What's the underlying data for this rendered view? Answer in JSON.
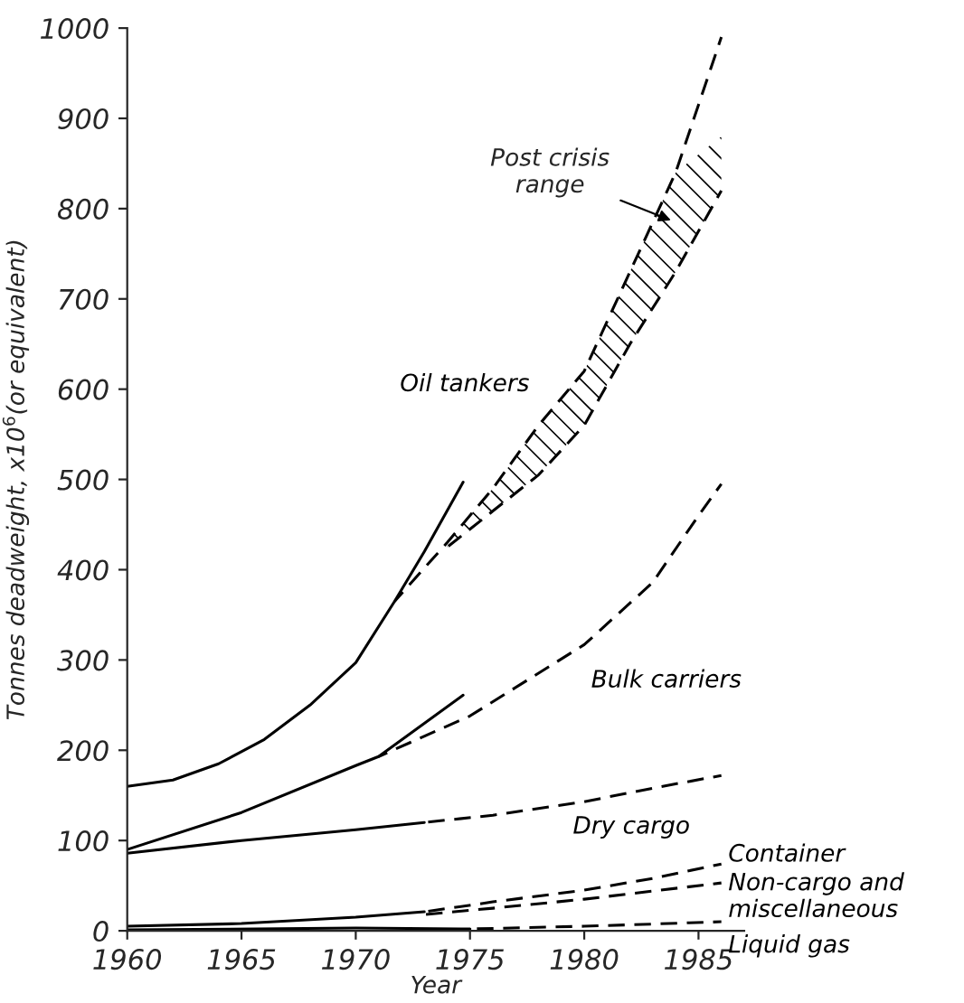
{
  "chart_data": {
    "type": "line",
    "xlabel": "Year",
    "ylabel": "Tonnes deadweight, x10$^{6}$(or equivalent)",
    "xlim": [
      1960,
      1987
    ],
    "xticks": [
      1960,
      1965,
      1970,
      1975,
      1980,
      1985
    ],
    "ylim": [
      0,
      1000
    ],
    "yticks": [
      0,
      100,
      200,
      300,
      400,
      500,
      600,
      700,
      800,
      900,
      1000
    ],
    "grid": false,
    "legend": false,
    "marker": "none",
    "series": [
      {
        "color": "#000000",
        "line_style": "solid",
        "x": [
          1960,
          1962,
          1964,
          1966,
          1968,
          1970,
          1971.7,
          1973,
          1974.7
        ],
        "values": [
          160,
          167,
          185,
          212,
          250,
          297,
          365,
          420,
          497
        ]
      },
      {
        "name": "Oil tankers",
        "color": "#000000",
        "line_style": "dashed",
        "x": [
          1971.7,
          1974,
          1976,
          1978,
          1980,
          1982,
          1984,
          1986
        ],
        "values": [
          365,
          430,
          490,
          560,
          620,
          730,
          840,
          990
        ],
        "lower": [
          null,
          425,
          465,
          505,
          560,
          650,
          730,
          820
        ],
        "upper": [
          null,
          430,
          490,
          560,
          620,
          730,
          840,
          880
        ]
      },
      {
        "color": "#000000",
        "line_style": "dashed",
        "x": [
          1974,
          1976,
          1978,
          1980,
          1982,
          1984,
          1986
        ],
        "values": [
          425,
          465,
          505,
          560,
          650,
          730,
          820
        ]
      },
      {
        "color": "#000000",
        "line_style": "solid",
        "x": [
          1960,
          1965,
          1970,
          1971,
          1974.7
        ],
        "values": [
          90,
          131,
          183,
          193,
          261
        ]
      },
      {
        "name": "Bulk carriers",
        "color": "#000000",
        "line_style": "dashed",
        "x": [
          1971,
          1975,
          1980,
          1983,
          1985,
          1986
        ],
        "values": [
          193,
          238,
          317,
          386,
          460,
          495
        ]
      },
      {
        "color": "#000000",
        "line_style": "solid",
        "x": [
          1960,
          1965,
          1970,
          1973
        ],
        "values": [
          86,
          100,
          112,
          120
        ]
      },
      {
        "name": "Dry cargo",
        "color": "#000000",
        "line_style": "dashed",
        "x": [
          1973,
          1976,
          1980,
          1983,
          1986
        ],
        "values": [
          120,
          128,
          143,
          158,
          172
        ]
      },
      {
        "color": "#000000",
        "line_style": "solid",
        "x": [
          1960,
          1965,
          1970,
          1973
        ],
        "values": [
          5,
          8,
          15,
          21
        ]
      },
      {
        "name": "Container",
        "color": "#000000",
        "line_style": "dashed",
        "x": [
          1973,
          1976,
          1980,
          1983,
          1986
        ],
        "values": [
          21,
          32,
          45,
          58,
          74
        ]
      },
      {
        "name": "Non-cargo and miscellaneous",
        "color": "#000000",
        "line_style": "dashed",
        "x": [
          1973,
          1976,
          1980,
          1983,
          1986
        ],
        "values": [
          18,
          25,
          35,
          44,
          53
        ]
      },
      {
        "color": "#000000",
        "line_style": "solid",
        "x": [
          1960,
          1970,
          1975
        ],
        "values": [
          1,
          3,
          2
        ]
      },
      {
        "name": "Liquid gas",
        "color": "#000000",
        "line_style": "dashed",
        "x": [
          1975,
          1980,
          1986
        ],
        "values": [
          2,
          5,
          10
        ]
      }
    ],
    "annotations": [
      "Post crisis\nrange"
    ]
  }
}
